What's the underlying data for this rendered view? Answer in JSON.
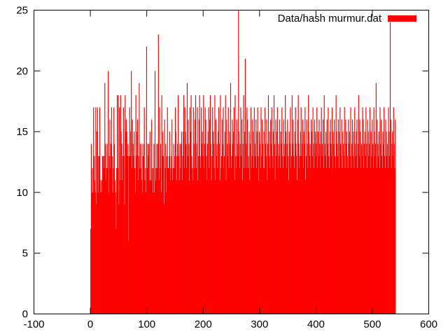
{
  "chart_data": {
    "type": "bar",
    "title": "",
    "xlabel": "",
    "ylabel": "",
    "xlim": [
      -100,
      600
    ],
    "ylim": [
      0,
      25
    ],
    "x_ticks": [
      "-100",
      "0",
      "100",
      "200",
      "300",
      "400",
      "500",
      "600"
    ],
    "y_ticks": [
      "0",
      "5",
      "10",
      "15",
      "20",
      "25"
    ],
    "x_tick_values": [
      -100,
      0,
      100,
      200,
      300,
      400,
      500,
      600
    ],
    "y_tick_values": [
      0,
      5,
      10,
      15,
      20,
      25
    ],
    "grid": false,
    "legend": {
      "position": "top-right",
      "entries": [
        "Data/hash murmur.dat"
      ]
    },
    "color": "#ff0000",
    "x_start": 0,
    "x_step": 1,
    "series": [
      {
        "name": "Data/hash murmur.dat",
        "values": [
          7,
          14,
          10,
          12,
          10,
          17,
          13,
          11,
          10,
          17,
          9,
          15,
          17,
          10,
          13,
          13,
          17,
          10,
          11,
          10,
          11,
          13,
          13,
          12,
          13,
          19,
          14,
          11,
          12,
          14,
          12,
          20,
          10,
          13,
          16,
          12,
          14,
          17,
          13,
          10,
          12,
          17,
          14,
          11,
          10,
          7,
          12,
          18,
          12,
          18,
          9,
          17,
          11,
          18,
          15,
          14,
          11,
          13,
          17,
          13,
          9,
          18,
          15,
          16,
          15,
          13,
          14,
          6,
          13,
          17,
          13,
          15,
          20,
          12,
          16,
          14,
          13,
          15,
          12,
          10,
          18,
          13,
          15,
          16,
          11,
          13,
          19,
          12,
          14,
          12,
          11,
          14,
          10,
          13,
          14,
          17,
          11,
          12,
          10,
          22,
          12,
          14,
          13,
          14,
          11,
          15,
          11,
          11,
          16,
          12,
          10,
          12,
          14,
          10,
          20,
          11,
          12,
          14,
          12,
          14,
          23,
          11,
          17,
          12,
          14,
          10,
          18,
          13,
          15,
          13,
          9,
          16,
          12,
          14,
          10,
          13,
          17,
          12,
          12,
          13,
          15,
          11,
          12,
          13,
          16,
          11,
          12,
          14,
          12,
          13,
          17,
          15,
          11,
          13,
          14,
          18,
          13,
          11,
          14,
          12,
          14,
          15,
          11,
          13,
          15,
          18,
          12,
          17,
          15,
          14,
          12,
          19,
          13,
          16,
          14,
          11,
          17,
          15,
          18,
          13,
          12,
          11,
          17,
          14,
          12,
          16,
          18,
          12,
          14,
          17,
          11,
          13,
          16,
          18,
          13,
          12,
          17,
          14,
          15,
          13,
          18,
          12,
          14,
          17,
          16,
          13,
          11,
          14,
          15,
          17,
          12,
          16,
          18,
          14,
          11,
          13,
          17,
          15,
          14,
          12,
          18,
          11,
          16,
          13,
          14,
          12,
          15,
          17,
          14,
          11,
          18,
          12,
          13,
          16,
          14,
          17,
          12,
          13,
          15,
          18,
          11,
          16,
          14,
          13,
          17,
          12,
          15,
          14,
          19,
          12,
          13,
          16,
          14,
          15,
          17,
          11,
          18,
          13,
          12,
          16,
          14,
          13,
          25,
          15,
          12,
          14,
          17,
          13,
          16,
          11,
          14,
          18,
          12,
          15,
          21,
          12,
          14,
          17,
          16,
          12,
          13,
          15,
          11,
          14,
          17,
          12,
          13,
          16,
          15,
          12,
          17,
          14,
          13,
          16,
          12,
          15,
          17,
          13,
          11,
          15,
          14,
          12,
          17,
          13,
          16,
          14,
          12,
          15,
          12,
          17,
          14,
          13,
          16,
          11,
          14,
          18,
          13,
          15,
          12,
          16,
          14,
          17,
          13,
          12,
          15,
          18,
          14,
          11,
          16,
          13,
          15,
          17,
          12,
          14,
          13,
          16,
          12,
          15,
          14,
          17,
          13,
          12,
          16,
          14,
          13,
          18,
          15,
          12,
          14,
          16,
          13,
          11,
          15,
          14,
          17,
          12,
          13,
          18,
          14,
          16,
          13,
          12,
          15,
          17,
          14,
          13,
          11,
          16,
          18,
          14,
          12,
          13,
          15,
          17,
          13,
          14,
          16,
          12,
          15,
          14,
          17,
          11,
          13,
          16,
          14,
          12,
          18,
          15,
          13,
          14,
          12,
          16,
          15,
          13,
          17,
          14,
          12,
          16,
          15,
          13,
          14,
          17,
          12,
          15,
          13,
          16,
          14,
          12,
          15,
          17,
          13,
          14,
          16,
          12,
          18,
          14,
          13,
          15,
          12,
          16,
          14,
          17,
          13,
          12,
          15,
          16,
          14,
          13,
          17,
          12,
          15,
          14,
          16,
          13,
          12,
          18,
          15,
          14,
          13,
          16,
          12,
          15,
          17,
          14,
          13,
          16,
          12,
          15,
          14,
          13,
          17,
          12,
          16,
          14,
          15,
          13,
          12,
          16,
          14,
          15,
          13,
          17,
          12,
          14,
          16,
          13,
          15,
          12,
          17,
          14,
          13,
          15,
          16,
          12,
          14,
          18,
          13,
          16,
          15,
          12,
          14,
          13,
          17,
          16,
          12,
          14,
          15,
          13,
          17,
          14,
          12,
          16,
          15,
          13,
          14,
          17,
          12,
          15,
          13,
          16,
          14,
          12,
          17,
          15,
          13,
          14,
          19,
          12,
          16,
          14,
          13,
          15,
          12,
          17,
          14,
          16,
          13,
          12,
          15,
          14,
          17,
          13,
          12,
          16,
          15,
          13,
          14,
          12,
          17,
          15,
          13,
          24,
          16,
          12,
          14,
          15,
          13,
          17,
          14,
          12,
          16
        ]
      }
    ]
  }
}
